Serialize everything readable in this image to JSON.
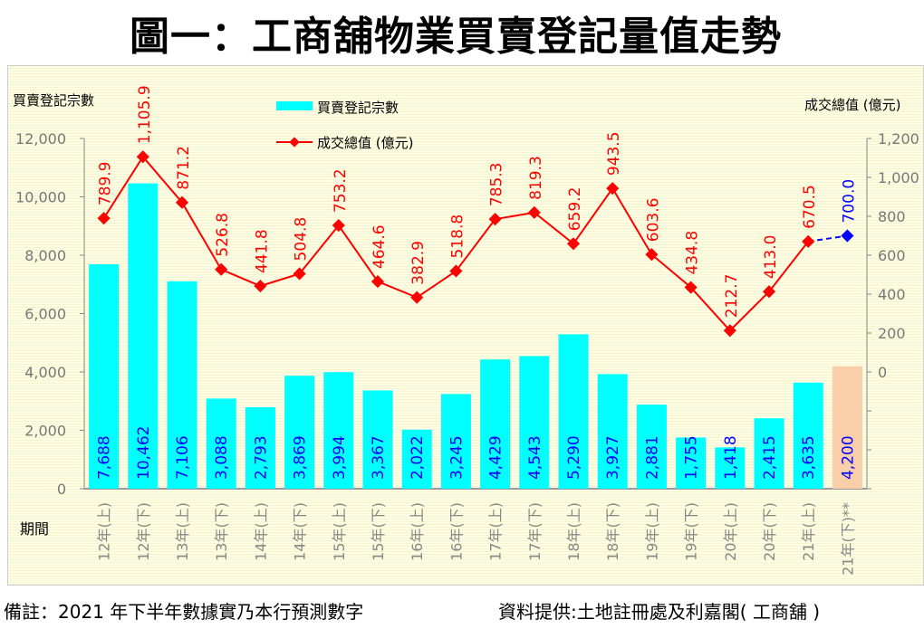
{
  "title": "圖一：工商舖物業買賣登記量值走勢",
  "note": "備註：2021 年下半年數據實乃本行預測數字",
  "source": "資料提供:土地註冊處及利嘉閣( 工商舖 )",
  "chart_data": {
    "type": "bar+line",
    "title": "圖一：工商舖物業買賣登記量值走勢",
    "xlabel": "期間",
    "ylabel_left": "買賣登記宗數",
    "ylabel_right": "成交總值 (億元)",
    "ylim_left": [
      0,
      12000
    ],
    "ylim_right": [
      -600,
      1200
    ],
    "left_ticks": [
      "0",
      "2,000",
      "4,000",
      "6,000",
      "8,000",
      "10,000",
      "12,000"
    ],
    "right_ticks": [
      "0",
      "200",
      "400",
      "600",
      "800",
      "1,000",
      "1,200"
    ],
    "legend": {
      "placement": "top-center",
      "entries": [
        "買賣登記宗數",
        "成交總值 (億元)"
      ]
    },
    "categories": [
      "12年(上)",
      "12年(下)",
      "13年(上)",
      "13年(下)",
      "14年(上)",
      "14年(下)",
      "15年(上)",
      "15年(下)",
      "16年(上)",
      "16年(下)",
      "17年(上)",
      "17年(下)",
      "18年(上)",
      "18年(下)",
      "19年(上)",
      "19年(下)",
      "20年(上)",
      "20年(下)",
      "21年(上)",
      "21年(下)**"
    ],
    "series": [
      {
        "name": "買賣登記宗數",
        "type": "bar",
        "color": "#00ffff",
        "forecast_color": "#f8cfa8",
        "values": [
          7688,
          10462,
          7106,
          3088,
          2793,
          3869,
          3994,
          3367,
          2022,
          3245,
          4429,
          4543,
          5290,
          3927,
          2881,
          1755,
          1418,
          2415,
          3635,
          4200
        ],
        "labels": [
          "7,688",
          "10,462",
          "7,106",
          "3,088",
          "2,793",
          "3,869",
          "3,994",
          "3,367",
          "2,022",
          "3,245",
          "4,429",
          "4,543",
          "5,290",
          "3,927",
          "2,881",
          "1,755",
          "1,418",
          "2,415",
          "3,635",
          "4,200"
        ]
      },
      {
        "name": "成交總值 (億元)",
        "type": "line",
        "color": "#ff0000",
        "forecast_color": "#0000ff",
        "values": [
          789.9,
          1105.9,
          871.2,
          526.8,
          441.8,
          504.8,
          753.2,
          464.6,
          382.9,
          518.8,
          785.3,
          819.3,
          659.2,
          943.5,
          603.6,
          434.8,
          212.7,
          413.0,
          670.5,
          700.0
        ],
        "labels": [
          "789.9",
          "1,105.9",
          "871.2",
          "526.8",
          "441.8",
          "504.8",
          "753.2",
          "464.6",
          "382.9",
          "518.8",
          "785.3",
          "819.3",
          "659.2",
          "943.5",
          "603.6",
          "434.8",
          "212.7",
          "413.0",
          "670.5",
          "700.0"
        ]
      }
    ]
  }
}
